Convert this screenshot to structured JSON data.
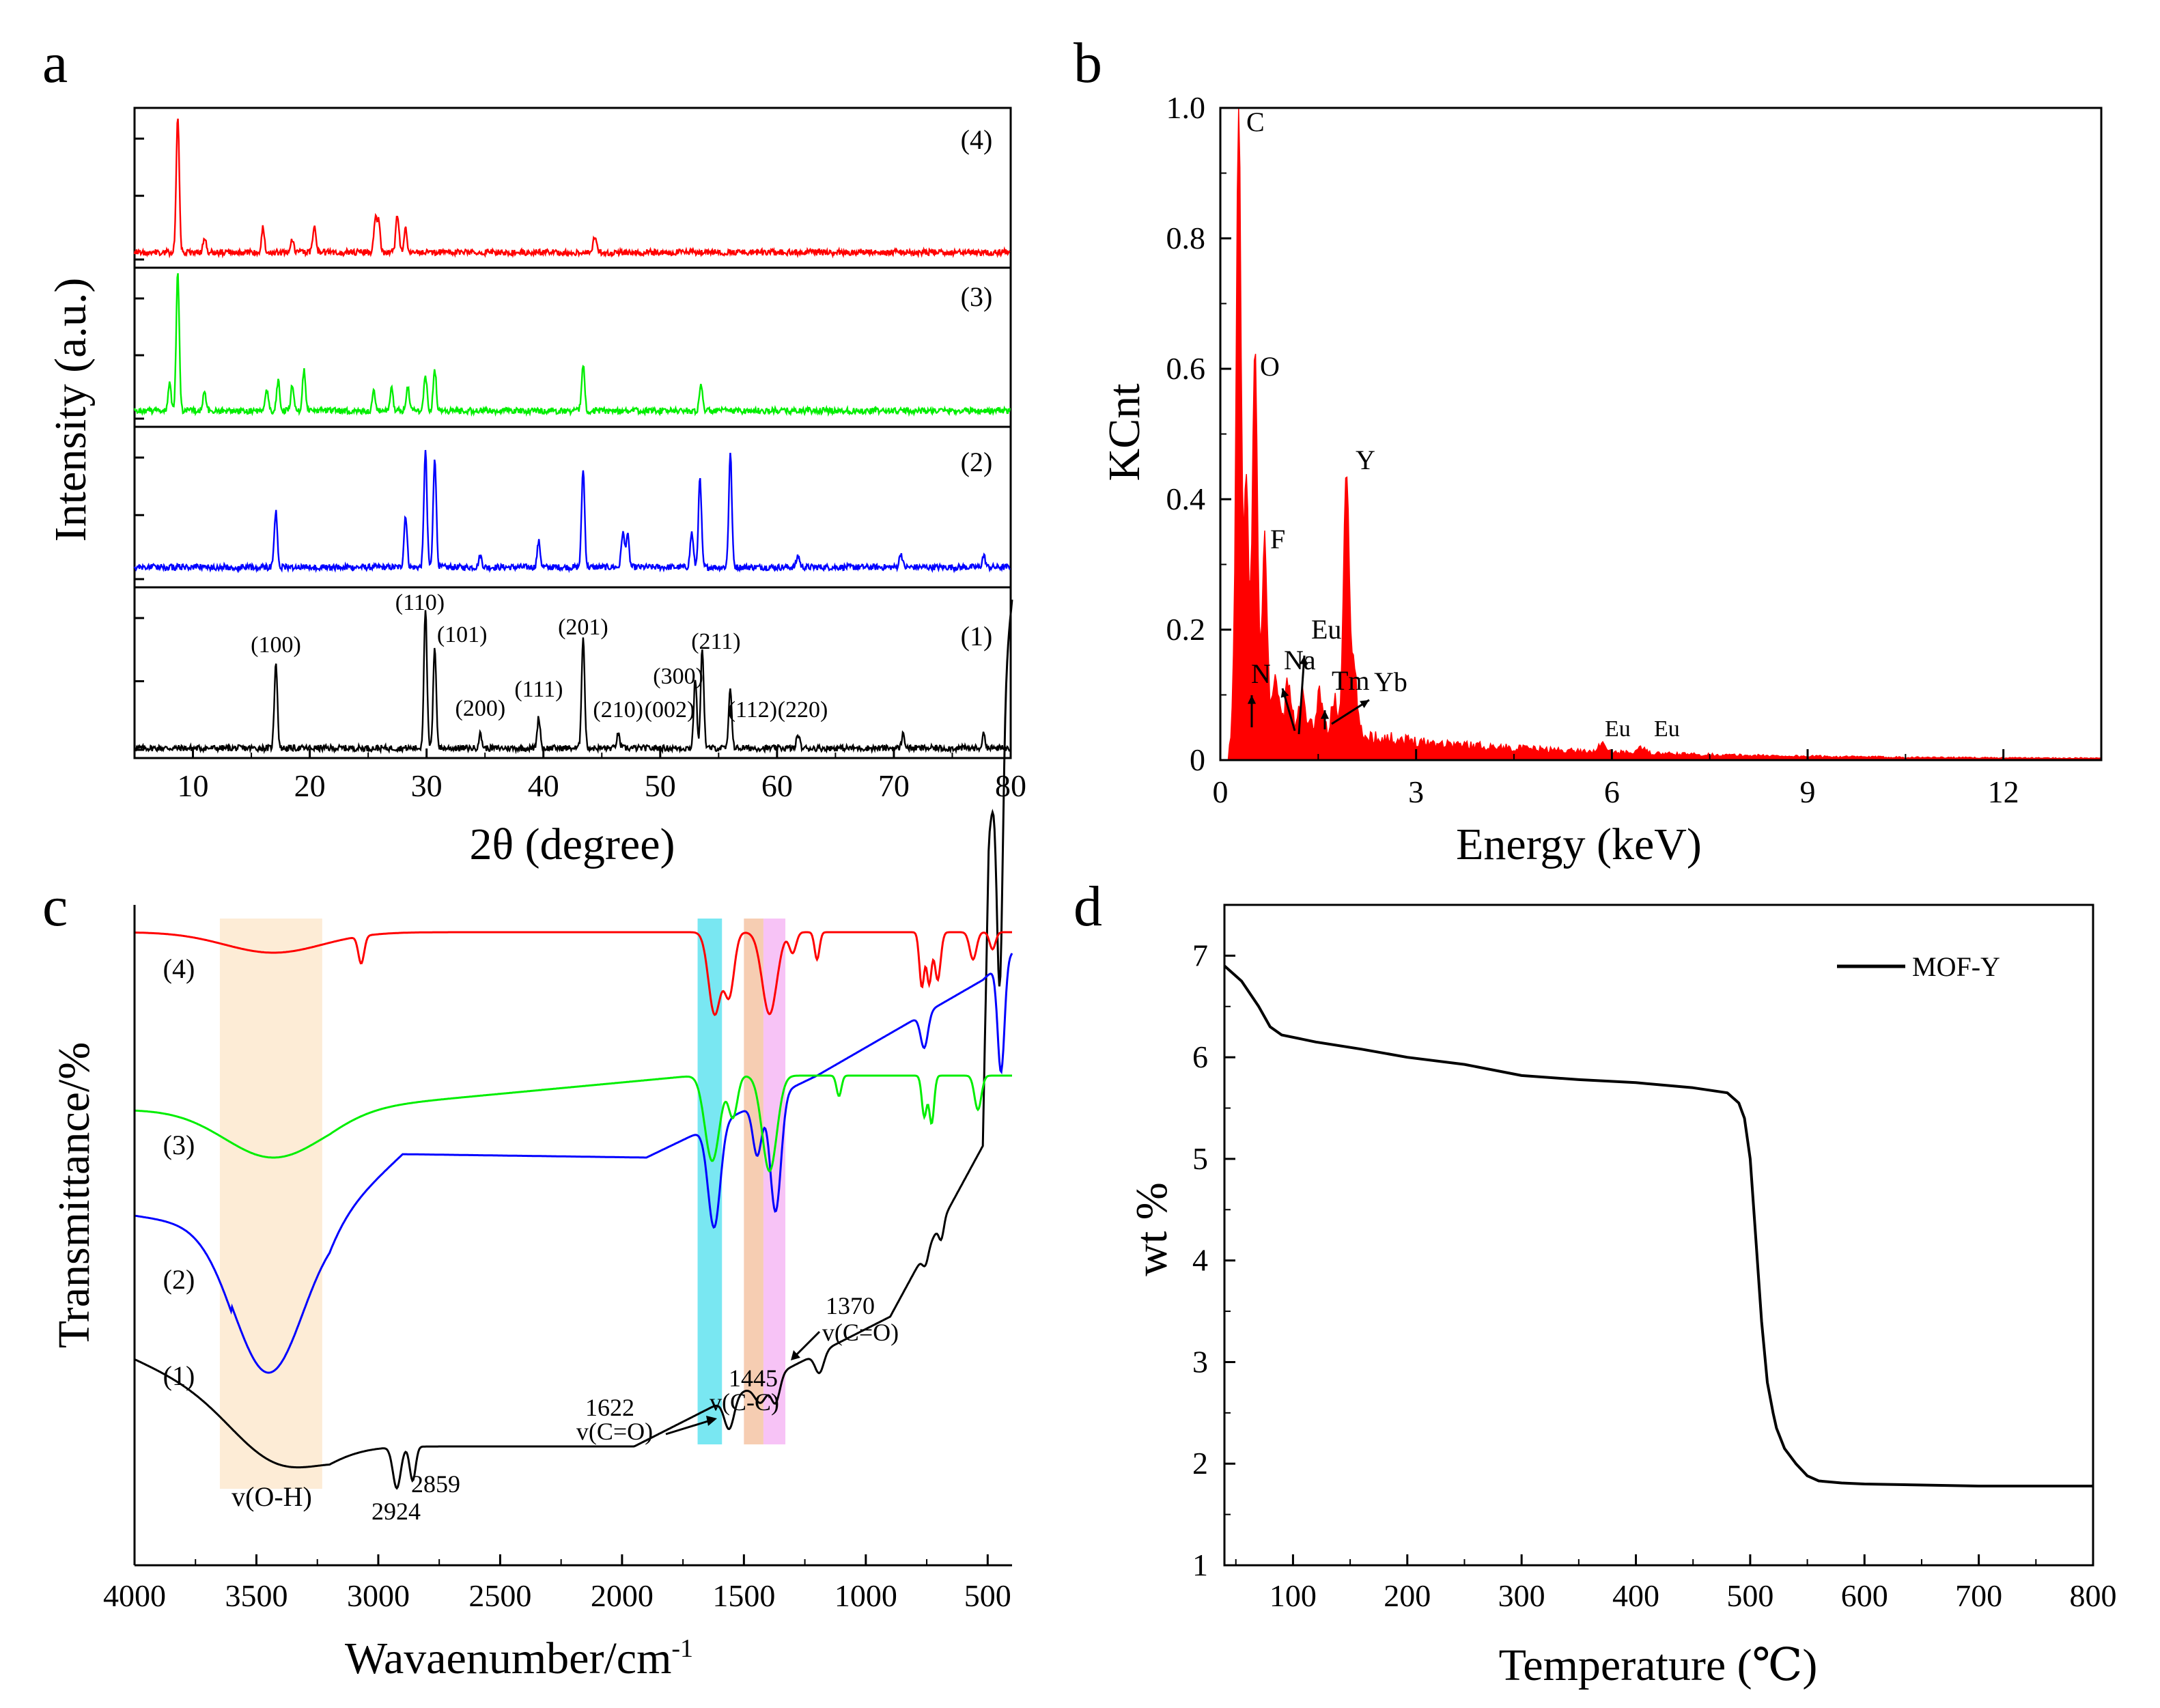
{
  "figure": {
    "panel_labels": [
      "a",
      "b",
      "c",
      "d"
    ]
  },
  "chart_data": [
    {
      "panel": "a",
      "type": "line",
      "xlabel": "2θ (degree)",
      "ylabel": "Intensity (a.u.)",
      "xlim": [
        5,
        80
      ],
      "xticks": [
        10,
        20,
        30,
        40,
        50,
        60,
        70,
        80
      ],
      "stacked": true,
      "colors": {
        "(1)": "#000000",
        "(2)": "#0000ff",
        "(3)": "#00ee00",
        "(4)": "#ff0000"
      },
      "series": [
        {
          "name": "(1)",
          "peaks": [
            [
              17.1,
              0.62
            ],
            [
              29.9,
              1.0
            ],
            [
              30.7,
              0.72
            ],
            [
              34.6,
              0.1
            ],
            [
              39.6,
              0.22
            ],
            [
              43.4,
              0.8
            ],
            [
              46.4,
              0.1
            ],
            [
              53.0,
              0.5
            ],
            [
              53.6,
              0.72
            ],
            [
              56.0,
              0.42
            ],
            [
              61.8,
              0.1
            ],
            [
              70.8,
              0.1
            ],
            [
              77.7,
              0.1
            ]
          ]
        },
        {
          "name": "(2)",
          "peaks": [
            [
              17.1,
              0.48
            ],
            [
              28.2,
              0.45
            ],
            [
              29.9,
              1.0
            ],
            [
              30.7,
              0.95
            ],
            [
              34.6,
              0.1
            ],
            [
              39.6,
              0.22
            ],
            [
              43.4,
              0.85
            ],
            [
              46.8,
              0.3
            ],
            [
              47.2,
              0.28
            ],
            [
              52.7,
              0.3
            ],
            [
              53.4,
              0.76
            ],
            [
              56.0,
              0.98
            ],
            [
              61.8,
              0.1
            ],
            [
              70.6,
              0.12
            ],
            [
              77.7,
              0.1
            ]
          ]
        },
        {
          "name": "(3)",
          "peaks": [
            [
              8.0,
              0.2
            ],
            [
              8.7,
              1.0
            ],
            [
              11.0,
              0.14
            ],
            [
              16.3,
              0.16
            ],
            [
              17.3,
              0.22
            ],
            [
              18.5,
              0.18
            ],
            [
              19.5,
              0.3
            ],
            [
              25.5,
              0.14
            ],
            [
              27.0,
              0.16
            ],
            [
              28.4,
              0.18
            ],
            [
              29.9,
              0.26
            ],
            [
              30.7,
              0.3
            ],
            [
              43.4,
              0.34
            ],
            [
              53.5,
              0.2
            ]
          ]
        },
        {
          "name": "(4)",
          "peaks": [
            [
              8.7,
              1.0
            ],
            [
              11.0,
              0.1
            ],
            [
              16.0,
              0.18
            ],
            [
              18.5,
              0.1
            ],
            [
              20.4,
              0.2
            ],
            [
              25.6,
              0.24
            ],
            [
              25.9,
              0.22
            ],
            [
              27.5,
              0.28
            ],
            [
              28.2,
              0.18
            ],
            [
              44.4,
              0.12
            ]
          ]
        }
      ],
      "labels": {
        "series_tags": [
          "(1)",
          "(2)",
          "(3)",
          "(4)"
        ],
        "hkl": [
          {
            "text": "(100)",
            "x": 17.1
          },
          {
            "text": "(110)",
            "x": 29.9
          },
          {
            "text": "(101)",
            "x": 30.7
          },
          {
            "text": "(200)",
            "x": 34.6
          },
          {
            "text": "(111)",
            "x": 39.6
          },
          {
            "text": "(201)",
            "x": 43.4
          },
          {
            "text": "(210)",
            "x": 46.4
          },
          {
            "text": "(002)",
            "x": 50.8
          },
          {
            "text": "(300)",
            "x": 53.0
          },
          {
            "text": "(211)",
            "x": 53.6
          },
          {
            "text": "(112)",
            "x": 57.9
          },
          {
            "text": "(220)",
            "x": 62.2
          }
        ]
      }
    },
    {
      "panel": "b",
      "type": "area",
      "xlabel": "Energy (keV)",
      "ylabel": "KCnt",
      "xlim": [
        0,
        13.5
      ],
      "ylim": [
        0,
        1.0
      ],
      "xticks": [
        0,
        3,
        6,
        9,
        12
      ],
      "yticks": [
        0,
        0.2,
        0.4,
        0.6,
        0.8,
        1.0
      ],
      "ytick_labels": [
        "0",
        "0.2",
        "0.4",
        "0.6",
        "0.8",
        "1.0"
      ],
      "color": "#ff0000",
      "peaks": [
        [
          0.28,
          0.945
        ],
        [
          0.4,
          0.36
        ],
        [
          0.53,
          0.575
        ],
        [
          0.68,
          0.28
        ],
        [
          0.85,
          0.08
        ],
        [
          1.04,
          0.07
        ],
        [
          1.25,
          0.05
        ],
        [
          1.52,
          0.06
        ],
        [
          1.75,
          0.05
        ],
        [
          1.93,
          0.41
        ],
        [
          2.05,
          0.1
        ],
        [
          5.85,
          0.012
        ],
        [
          6.45,
          0.008
        ]
      ],
      "element_labels": [
        "C",
        "O",
        "F",
        "Y",
        "N",
        "Na",
        "Eu",
        "Tm",
        "Yb",
        "Eu",
        "Eu"
      ]
    },
    {
      "panel": "c",
      "type": "line",
      "xlabel": "Wavaenumber/cm",
      "xlabel_sup": "-1",
      "ylabel": "Transmittance/%",
      "xlim": [
        4000,
        400
      ],
      "xticks": [
        4000,
        3500,
        3000,
        2500,
        2000,
        1500,
        1000,
        500
      ],
      "colors": {
        "(1)": "#000000",
        "(2)": "#0000ff",
        "(3)": "#00ee00",
        "(4)": "#ff0000"
      },
      "series_names": [
        "(1)",
        "(2)",
        "(3)",
        "(4)"
      ],
      "highlight_bands": [
        {
          "range": [
            3650,
            3230
          ],
          "color": "#fde9cf"
        },
        {
          "range": [
            1690,
            1590
          ],
          "color": "#62e3f0"
        },
        {
          "range": [
            1500,
            1420
          ],
          "color": "#f5c4a5"
        },
        {
          "range": [
            1420,
            1330
          ],
          "color": "#f6b8f4"
        }
      ],
      "annotations": [
        "v(O-H)",
        "2924",
        "2859",
        "1622",
        "v(C=O)",
        "1445",
        "v(C-C)",
        "1370",
        "v(C=O)"
      ]
    },
    {
      "panel": "d",
      "type": "line",
      "xlabel": "Temperature (℃)",
      "ylabel": "wt %",
      "xlim": [
        40,
        800
      ],
      "ylim": [
        1,
        7.5
      ],
      "xticks": [
        100,
        200,
        300,
        400,
        500,
        600,
        700,
        800
      ],
      "yticks": [
        1,
        2,
        3,
        4,
        5,
        6,
        7
      ],
      "legend": "MOF-Y",
      "legend_position": "top-right",
      "color": "#000000",
      "x": [
        40,
        55,
        70,
        80,
        90,
        120,
        160,
        200,
        250,
        300,
        350,
        400,
        450,
        480,
        490,
        495,
        500,
        505,
        510,
        515,
        520,
        523,
        530,
        540,
        550,
        560,
        580,
        600,
        700,
        800
      ],
      "y": [
        6.9,
        6.75,
        6.5,
        6.3,
        6.22,
        6.15,
        6.08,
        6.0,
        5.93,
        5.82,
        5.78,
        5.75,
        5.7,
        5.65,
        5.55,
        5.4,
        5.0,
        4.2,
        3.4,
        2.8,
        2.5,
        2.35,
        2.15,
        2.0,
        1.88,
        1.83,
        1.81,
        1.8,
        1.78,
        1.78
      ]
    }
  ]
}
